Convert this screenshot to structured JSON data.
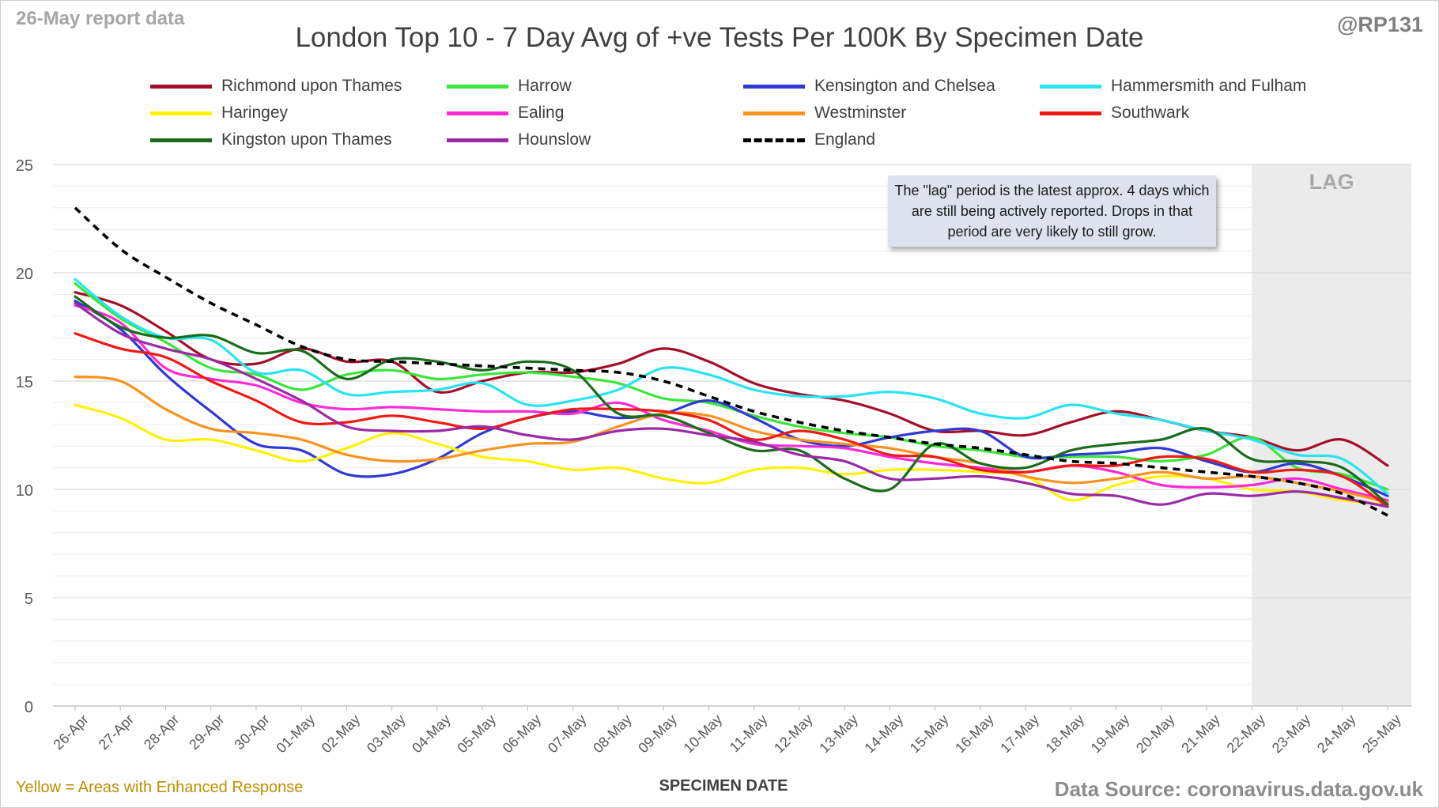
{
  "report_label": "26-May report data",
  "handle": "@RP131",
  "lag_note": "The \"lag\" period is the latest approx. 4 days which are still being actively reported. Drops in that period are very likely to still grow.",
  "footnote_left": "Yellow = Areas with Enhanced Response",
  "data_source": "Data Source: coronavirus.data.gov.uk",
  "chart_data": {
    "type": "line",
    "title": "London Top 10 - 7 Day Avg of +ve Tests Per 100K By Specimen Date",
    "xlabel": "SPECIMEN DATE",
    "ylabel": "",
    "ylim": [
      0,
      25
    ],
    "yticks": [
      0,
      5,
      10,
      15,
      20,
      25
    ],
    "grid": true,
    "legend_position": "top",
    "lag_label": "LAG",
    "lag_start": "22-May",
    "lag_end": "25-May",
    "x": [
      "26-Apr",
      "27-Apr",
      "28-Apr",
      "29-Apr",
      "30-Apr",
      "01-May",
      "02-May",
      "03-May",
      "04-May",
      "05-May",
      "06-May",
      "07-May",
      "08-May",
      "09-May",
      "10-May",
      "11-May",
      "12-May",
      "13-May",
      "14-May",
      "15-May",
      "16-May",
      "17-May",
      "18-May",
      "19-May",
      "20-May",
      "21-May",
      "22-May",
      "23-May",
      "24-May",
      "25-May"
    ],
    "series": [
      {
        "name": "Richmond upon Thames",
        "color": "#a50e28",
        "style": "solid",
        "values": [
          19.1,
          18.5,
          17.3,
          16.0,
          15.8,
          16.5,
          15.9,
          15.9,
          14.5,
          15.0,
          15.4,
          15.4,
          15.8,
          16.5,
          15.9,
          14.9,
          14.4,
          14.1,
          13.5,
          12.7,
          12.7,
          12.5,
          13.1,
          13.6,
          13.2,
          12.7,
          12.4,
          11.8,
          12.3,
          11.1
        ]
      },
      {
        "name": "Harrow",
        "color": "#3ae63a",
        "style": "solid",
        "values": [
          19.5,
          17.9,
          16.8,
          15.6,
          15.3,
          14.6,
          15.3,
          15.5,
          15.1,
          15.3,
          15.4,
          15.2,
          14.9,
          14.2,
          14.0,
          13.4,
          12.9,
          12.6,
          12.4,
          12.0,
          11.8,
          11.5,
          11.5,
          11.5,
          11.3,
          11.6,
          12.4,
          11.0,
          10.7,
          10.0
        ]
      },
      {
        "name": "Kensington and Chelsea",
        "color": "#2e3ad3",
        "style": "solid",
        "values": [
          18.7,
          17.4,
          15.3,
          13.6,
          12.1,
          11.8,
          10.7,
          10.7,
          11.4,
          12.6,
          13.3,
          13.6,
          13.3,
          13.5,
          14.1,
          13.3,
          12.3,
          12.0,
          12.4,
          12.7,
          12.7,
          11.5,
          11.6,
          11.7,
          11.9,
          11.3,
          10.8,
          11.2,
          10.6,
          9.7
        ]
      },
      {
        "name": "Hammersmith and Fulham",
        "color": "#27e4f0",
        "style": "solid",
        "values": [
          19.7,
          18.0,
          17.0,
          16.9,
          15.4,
          15.5,
          14.4,
          14.5,
          14.6,
          14.9,
          13.9,
          14.1,
          14.6,
          15.6,
          15.3,
          14.6,
          14.3,
          14.3,
          14.5,
          14.2,
          13.5,
          13.3,
          13.9,
          13.5,
          13.2,
          12.7,
          12.3,
          11.6,
          11.4,
          9.8
        ]
      },
      {
        "name": "Haringey",
        "color": "#fff200",
        "style": "solid",
        "values": [
          13.9,
          13.3,
          12.3,
          12.3,
          11.8,
          11.3,
          11.9,
          12.6,
          12.1,
          11.5,
          11.3,
          10.9,
          11.0,
          10.5,
          10.3,
          10.9,
          11.0,
          10.7,
          10.9,
          10.9,
          10.8,
          10.6,
          9.5,
          10.2,
          10.6,
          10.5,
          10.0,
          9.9,
          9.5,
          9.3
        ]
      },
      {
        "name": "Ealing",
        "color": "#ff2bd6",
        "style": "solid",
        "values": [
          18.5,
          17.7,
          15.6,
          15.1,
          14.8,
          14.0,
          13.7,
          13.8,
          13.7,
          13.6,
          13.6,
          13.5,
          14.0,
          13.2,
          12.7,
          12.1,
          12.0,
          11.9,
          11.5,
          11.2,
          11.0,
          10.8,
          11.1,
          10.8,
          10.2,
          10.1,
          10.2,
          10.5,
          10.0,
          9.5
        ]
      },
      {
        "name": "Westminster",
        "color": "#f7931e",
        "style": "solid",
        "values": [
          15.2,
          15.0,
          13.7,
          12.8,
          12.6,
          12.3,
          11.6,
          11.3,
          11.4,
          11.8,
          12.1,
          12.2,
          12.9,
          13.5,
          13.4,
          12.7,
          12.3,
          12.1,
          11.9,
          11.5,
          11.2,
          10.6,
          10.3,
          10.5,
          10.8,
          10.5,
          10.6,
          10.3,
          9.9,
          9.4
        ]
      },
      {
        "name": "Southwark",
        "color": "#ef1a14",
        "style": "solid",
        "values": [
          17.2,
          16.5,
          16.1,
          15.0,
          14.1,
          13.1,
          13.1,
          13.4,
          13.1,
          12.8,
          13.3,
          13.7,
          13.7,
          13.6,
          13.2,
          12.3,
          12.7,
          12.3,
          11.6,
          11.5,
          10.9,
          10.8,
          11.1,
          11.1,
          11.5,
          11.4,
          10.8,
          10.9,
          10.6,
          9.2
        ]
      },
      {
        "name": "Kingston upon Thames",
        "color": "#1a6b1a",
        "style": "solid",
        "values": [
          18.9,
          17.5,
          17.0,
          17.1,
          16.3,
          16.4,
          15.1,
          16.0,
          15.9,
          15.5,
          15.9,
          15.5,
          13.5,
          13.4,
          12.6,
          11.8,
          11.8,
          10.5,
          10.0,
          12.1,
          11.2,
          11.0,
          11.8,
          12.1,
          12.3,
          12.8,
          11.4,
          11.3,
          11.0,
          9.3
        ]
      },
      {
        "name": "Hounslow",
        "color": "#9b2aa6",
        "style": "solid",
        "values": [
          18.6,
          17.2,
          16.5,
          16.0,
          15.1,
          14.1,
          12.9,
          12.7,
          12.7,
          12.9,
          12.5,
          12.3,
          12.7,
          12.8,
          12.5,
          12.2,
          11.6,
          11.3,
          10.5,
          10.5,
          10.6,
          10.3,
          9.8,
          9.7,
          9.3,
          9.8,
          9.7,
          9.9,
          9.6,
          9.2
        ]
      },
      {
        "name": "England",
        "color": "#000000",
        "style": "dashed",
        "values": [
          23.0,
          21.1,
          19.8,
          18.6,
          17.6,
          16.6,
          16.0,
          15.9,
          15.8,
          15.7,
          15.6,
          15.5,
          15.4,
          15.0,
          14.3,
          13.6,
          13.1,
          12.7,
          12.4,
          12.1,
          11.9,
          11.6,
          11.3,
          11.2,
          11.0,
          10.8,
          10.6,
          10.3,
          9.8,
          8.8
        ]
      }
    ]
  }
}
